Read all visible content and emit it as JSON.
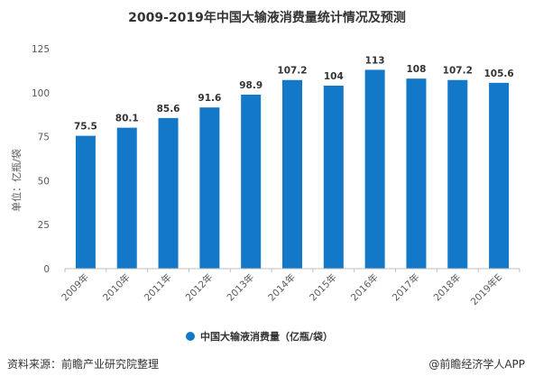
{
  "chart_data": {
    "type": "bar",
    "title": "2009-2019年中国大输液消费量统计情况及预测",
    "ylabel": "单位：亿瓶/袋",
    "xlabel": "",
    "categories": [
      "2009年",
      "2010年",
      "2011年",
      "2012年",
      "2013年",
      "2014年",
      "2015年",
      "2016年",
      "2017年",
      "2018年",
      "2019年E"
    ],
    "series": [
      {
        "name": "中国大输液消费量（亿瓶/袋）",
        "values": [
          75.5,
          80.1,
          85.6,
          91.6,
          98.9,
          107.2,
          104,
          113,
          108,
          107.2,
          105.6
        ],
        "labels": [
          "75.5",
          "80.1",
          "85.6",
          "91.6",
          "98.9",
          "107.2",
          "104",
          "113",
          "108",
          "107.2",
          "105.6"
        ]
      }
    ],
    "ylim": [
      0,
      125
    ],
    "yticks": [
      0,
      25,
      50,
      75,
      100,
      125
    ],
    "grid": false,
    "legend": "bottom-center",
    "bar_color": "#1478c8"
  },
  "footer": {
    "source": "资料来源：前瞻产业研究院整理",
    "brand": "@前瞻经济学人APP"
  }
}
